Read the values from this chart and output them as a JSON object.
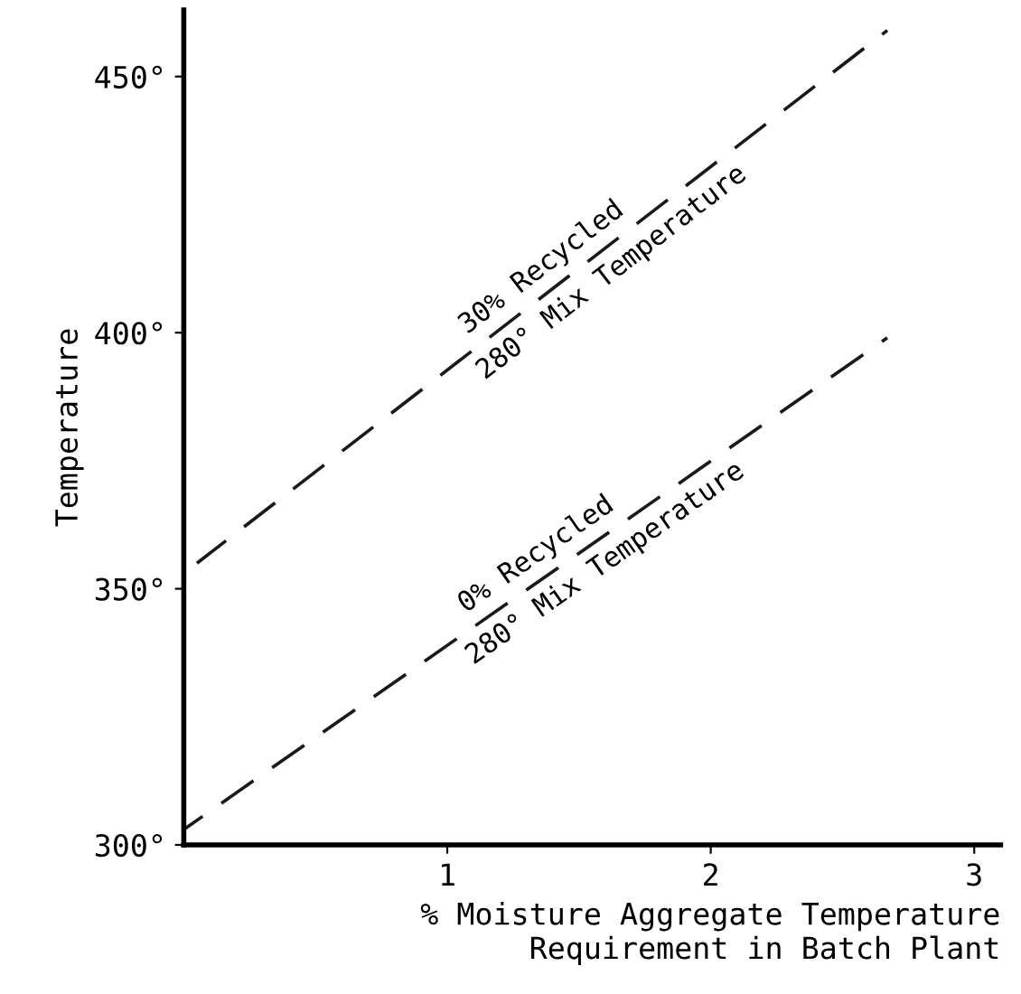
{
  "chart_data": {
    "type": "line",
    "xlabel": "% Moisture Aggregate Temperature\nRequirement in Batch Plant",
    "ylabel": "Temperature",
    "xlim": [
      0,
      3.1
    ],
    "ylim": [
      300,
      463
    ],
    "xticks": [
      1,
      2,
      3
    ],
    "yticks": [
      {
        "value": 300,
        "label": "300°"
      },
      {
        "value": 350,
        "label": "350°"
      },
      {
        "value": 400,
        "label": "400°"
      },
      {
        "value": 450,
        "label": "450°"
      }
    ],
    "grid": false,
    "legend": false,
    "marker": "none",
    "line_style": "dashed",
    "series": [
      {
        "color": "#1a1a1a",
        "x": [
          0.05,
          2.67
        ],
        "values": [
          355,
          459
        ]
      },
      {
        "color": "#1a1a1a",
        "x": [
          0,
          2.67
        ],
        "values": [
          303,
          399
        ]
      }
    ],
    "annotations": [
      "30% Recycled",
      "280° Mix Temperature",
      "0% Recycled",
      "280° Mix Temperature"
    ]
  }
}
